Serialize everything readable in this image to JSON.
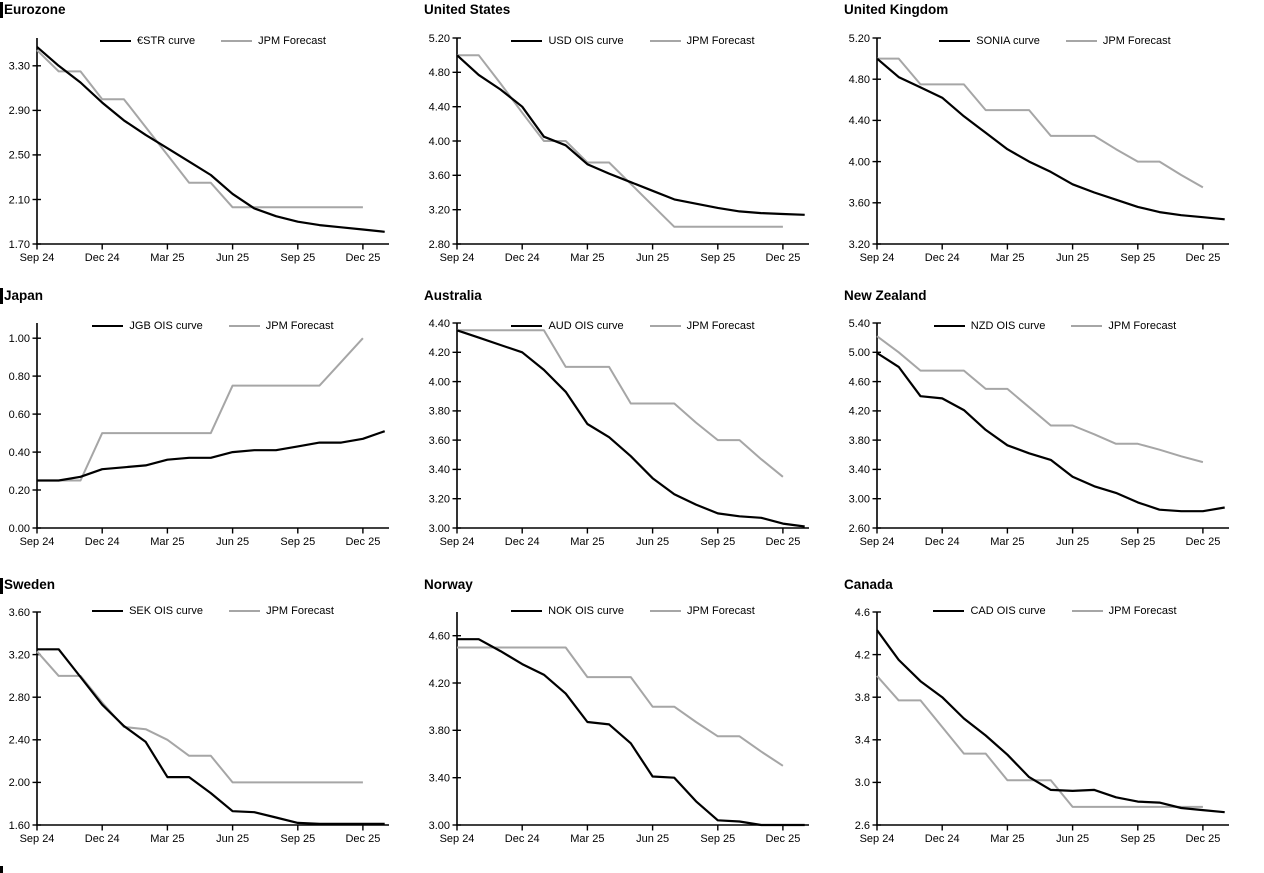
{
  "page": {
    "background": "#ffffff"
  },
  "colors": {
    "ois_line": "#000000",
    "forecast_line": "#a6a6a6",
    "axis": "#000000",
    "text": "#000000"
  },
  "chart_data": [
    {
      "type": "line",
      "title": "Eurozone",
      "x_ticklabels": [
        "Sep 24",
        "Dec 24",
        "Mar 25",
        "Jun 25",
        "Sep 25",
        "Dec 25"
      ],
      "x_tick_positions": [
        0,
        3,
        6,
        9,
        12,
        15
      ],
      "ylim": [
        1.7,
        3.55
      ],
      "ytick_labels": [
        "1.70",
        "2.10",
        "2.50",
        "2.90",
        "3.30"
      ],
      "grid": false,
      "legend_position": "top-center",
      "series": [
        {
          "name": "€STR curve",
          "color": "#000000",
          "values": [
            3.47,
            3.3,
            3.15,
            2.97,
            2.81,
            2.68,
            2.56,
            2.44,
            2.32,
            2.15,
            2.02,
            1.95,
            1.9,
            1.87,
            1.85,
            1.83,
            1.81
          ]
        },
        {
          "name": "JPM Forecast",
          "color": "#a6a6a6",
          "values": [
            3.44,
            3.25,
            3.25,
            3.0,
            3.0,
            2.75,
            2.5,
            2.25,
            2.25,
            2.03,
            2.03,
            2.03,
            2.03,
            2.03,
            2.03,
            2.03
          ]
        }
      ]
    },
    {
      "type": "line",
      "title": "United States",
      "x_ticklabels": [
        "Sep 24",
        "Dec 24",
        "Mar 25",
        "Jun 25",
        "Sep 25",
        "Dec 25"
      ],
      "x_tick_positions": [
        0,
        3,
        6,
        9,
        12,
        15
      ],
      "ylim": [
        2.8,
        5.2
      ],
      "ytick_labels": [
        "2.80",
        "3.20",
        "3.60",
        "4.00",
        "4.40",
        "4.80",
        "5.20"
      ],
      "grid": false,
      "legend_position": "top-center",
      "series": [
        {
          "name": "USD OIS curve",
          "color": "#000000",
          "values": [
            5.0,
            4.77,
            4.6,
            4.4,
            4.05,
            3.95,
            3.73,
            3.62,
            3.52,
            3.42,
            3.32,
            3.27,
            3.22,
            3.18,
            3.16,
            3.15,
            3.14
          ]
        },
        {
          "name": "JPM Forecast",
          "color": "#a6a6a6",
          "values": [
            5.0,
            5.0,
            4.67,
            4.33,
            4.0,
            4.0,
            3.75,
            3.75,
            3.5,
            3.25,
            3.0,
            3.0,
            3.0,
            3.0,
            3.0,
            3.0
          ]
        }
      ]
    },
    {
      "type": "line",
      "title": "United Kingdom",
      "x_ticklabels": [
        "Sep 24",
        "Dec 24",
        "Mar 25",
        "Jun 25",
        "Sep 25",
        "Dec 25"
      ],
      "x_tick_positions": [
        0,
        3,
        6,
        9,
        12,
        15
      ],
      "ylim": [
        3.2,
        5.2
      ],
      "ytick_labels": [
        "3.20",
        "3.60",
        "4.00",
        "4.40",
        "4.80",
        "5.20"
      ],
      "grid": false,
      "legend_position": "top-center",
      "series": [
        {
          "name": "SONIA curve",
          "color": "#000000",
          "values": [
            5.0,
            4.82,
            4.72,
            4.62,
            4.44,
            4.28,
            4.12,
            4.0,
            3.9,
            3.78,
            3.7,
            3.63,
            3.56,
            3.51,
            3.48,
            3.46,
            3.44
          ]
        },
        {
          "name": "JPM Forecast",
          "color": "#a6a6a6",
          "values": [
            5.0,
            5.0,
            4.75,
            4.75,
            4.75,
            4.5,
            4.5,
            4.5,
            4.25,
            4.25,
            4.25,
            4.12,
            4.0,
            4.0,
            3.87,
            3.75
          ]
        }
      ]
    },
    {
      "type": "line",
      "title": "Japan",
      "x_ticklabels": [
        "Sep 24",
        "Dec 24",
        "Mar 25",
        "Jun 25",
        "Sep 25",
        "Dec 25"
      ],
      "x_tick_positions": [
        0,
        3,
        6,
        9,
        12,
        15
      ],
      "ylim": [
        0.0,
        1.08
      ],
      "ytick_labels": [
        "0.00",
        "0.20",
        "0.40",
        "0.60",
        "0.80",
        "1.00"
      ],
      "grid": false,
      "legend_position": "top-center",
      "series": [
        {
          "name": "JGB OIS curve",
          "color": "#000000",
          "values": [
            0.25,
            0.25,
            0.27,
            0.31,
            0.32,
            0.33,
            0.36,
            0.37,
            0.37,
            0.4,
            0.41,
            0.41,
            0.43,
            0.45,
            0.45,
            0.47,
            0.51
          ]
        },
        {
          "name": "JPM Forecast",
          "color": "#a6a6a6",
          "values": [
            0.25,
            0.25,
            0.25,
            0.5,
            0.5,
            0.5,
            0.5,
            0.5,
            0.5,
            0.75,
            0.75,
            0.75,
            0.75,
            0.75,
            0.875,
            1.0
          ]
        }
      ]
    },
    {
      "type": "line",
      "title": "Australia",
      "x_ticklabels": [
        "Sep 24",
        "Dec 24",
        "Mar 25",
        "Jun 25",
        "Sep 25",
        "Dec 25"
      ],
      "x_tick_positions": [
        0,
        3,
        6,
        9,
        12,
        15
      ],
      "ylim": [
        3.0,
        4.4
      ],
      "ytick_labels": [
        "3.00",
        "3.20",
        "3.40",
        "3.60",
        "3.80",
        "4.00",
        "4.20",
        "4.40"
      ],
      "grid": false,
      "legend_position": "top-center",
      "series": [
        {
          "name": "AUD OIS curve",
          "color": "#000000",
          "values": [
            4.35,
            4.3,
            4.25,
            4.2,
            4.08,
            3.93,
            3.71,
            3.62,
            3.49,
            3.34,
            3.23,
            3.16,
            3.1,
            3.08,
            3.07,
            3.03,
            3.01
          ]
        },
        {
          "name": "JPM Forecast",
          "color": "#a6a6a6",
          "values": [
            4.35,
            4.35,
            4.35,
            4.35,
            4.35,
            4.1,
            4.1,
            4.1,
            3.85,
            3.85,
            3.85,
            3.72,
            3.6,
            3.6,
            3.47,
            3.35
          ]
        }
      ]
    },
    {
      "type": "line",
      "title": "New Zealand",
      "x_ticklabels": [
        "Sep 24",
        "Dec 24",
        "Mar 25",
        "Jun 25",
        "Sep 25",
        "Dec 25"
      ],
      "x_tick_positions": [
        0,
        3,
        6,
        9,
        12,
        15
      ],
      "ylim": [
        2.6,
        5.4
      ],
      "ytick_labels": [
        "2.60",
        "3.00",
        "3.40",
        "3.80",
        "4.20",
        "4.60",
        "5.00",
        "5.40"
      ],
      "grid": false,
      "legend_position": "top-center",
      "series": [
        {
          "name": "NZD OIS curve",
          "color": "#000000",
          "values": [
            4.99,
            4.8,
            4.4,
            4.37,
            4.21,
            3.94,
            3.73,
            3.62,
            3.53,
            3.3,
            3.17,
            3.08,
            2.95,
            2.85,
            2.83,
            2.83,
            2.88
          ]
        },
        {
          "name": "JPM Forecast",
          "color": "#a6a6a6",
          "values": [
            5.22,
            5.0,
            4.75,
            4.75,
            4.75,
            4.5,
            4.5,
            4.25,
            4.0,
            4.0,
            3.88,
            3.75,
            3.75,
            3.67,
            3.58,
            3.5
          ]
        }
      ]
    },
    {
      "type": "line",
      "title": "Sweden",
      "x_ticklabels": [
        "Sep 24",
        "Dec 24",
        "Mar 25",
        "Jun 25",
        "Sep 25",
        "Dec 25"
      ],
      "x_tick_positions": [
        0,
        3,
        6,
        9,
        12,
        15
      ],
      "ylim": [
        1.6,
        3.6
      ],
      "ytick_labels": [
        "1.60",
        "2.00",
        "2.40",
        "2.80",
        "3.20",
        "3.60"
      ],
      "grid": false,
      "legend_position": "top-center",
      "series": [
        {
          "name": "SEK OIS curve",
          "color": "#000000",
          "values": [
            3.25,
            3.25,
            2.99,
            2.73,
            2.53,
            2.38,
            2.05,
            2.05,
            1.9,
            1.73,
            1.72,
            1.67,
            1.62,
            1.61,
            1.61,
            1.61,
            1.61
          ]
        },
        {
          "name": "JPM Forecast",
          "color": "#a6a6a6",
          "values": [
            3.23,
            3.0,
            3.0,
            2.75,
            2.52,
            2.5,
            2.4,
            2.25,
            2.25,
            2.0,
            2.0,
            2.0,
            2.0,
            2.0,
            2.0,
            2.0
          ]
        }
      ]
    },
    {
      "type": "line",
      "title": "Norway",
      "x_ticklabels": [
        "Sep 24",
        "Dec 24",
        "Mar 25",
        "Jun 25",
        "Sep 25",
        "Dec 25"
      ],
      "x_tick_positions": [
        0,
        3,
        6,
        9,
        12,
        15
      ],
      "ylim": [
        3.0,
        4.8
      ],
      "ytick_labels": [
        "3.00",
        "3.40",
        "3.80",
        "4.20",
        "4.60"
      ],
      "grid": false,
      "legend_position": "top-center",
      "series": [
        {
          "name": "NOK OIS curve",
          "color": "#000000",
          "values": [
            4.57,
            4.57,
            4.47,
            4.36,
            4.27,
            4.11,
            3.87,
            3.85,
            3.69,
            3.41,
            3.4,
            3.2,
            3.04,
            3.03,
            3.0,
            3.0,
            3.0
          ]
        },
        {
          "name": "JPM Forecast",
          "color": "#a6a6a6",
          "values": [
            4.5,
            4.5,
            4.5,
            4.5,
            4.5,
            4.5,
            4.25,
            4.25,
            4.25,
            4.0,
            4.0,
            3.87,
            3.75,
            3.75,
            3.62,
            3.5
          ]
        }
      ]
    },
    {
      "type": "line",
      "title": "Canada",
      "x_ticklabels": [
        "Sep 24",
        "Dec 24",
        "Mar 25",
        "Jun 25",
        "Sep 25",
        "Dec 25"
      ],
      "x_tick_positions": [
        0,
        3,
        6,
        9,
        12,
        15
      ],
      "ylim": [
        2.6,
        4.6
      ],
      "ytick_labels": [
        "2.6",
        "3.0",
        "3.4",
        "3.8",
        "4.2",
        "4.6"
      ],
      "grid": false,
      "legend_position": "top-center",
      "series": [
        {
          "name": "CAD OIS curve",
          "color": "#000000",
          "values": [
            4.43,
            4.15,
            3.95,
            3.8,
            3.6,
            3.44,
            3.26,
            3.05,
            2.93,
            2.92,
            2.93,
            2.86,
            2.82,
            2.81,
            2.76,
            2.74,
            2.72
          ]
        },
        {
          "name": "JPM Forecast",
          "color": "#a6a6a6",
          "values": [
            4.0,
            3.77,
            3.77,
            3.52,
            3.27,
            3.27,
            3.02,
            3.02,
            3.02,
            2.77,
            2.77,
            2.77,
            2.77,
            2.77,
            2.77,
            2.77
          ]
        }
      ]
    }
  ]
}
